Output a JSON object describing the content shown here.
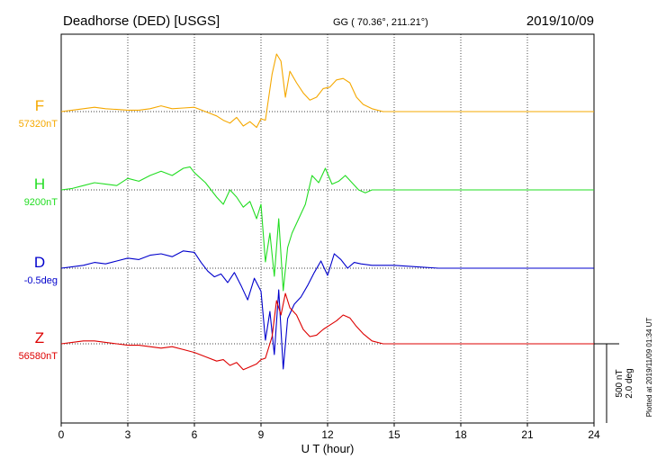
{
  "header": {
    "station": "Deadhorse (DED)  [USGS]",
    "coords": "GG ( 70.36°, 211.21°)",
    "date": "2019/10/09"
  },
  "plotted_at": "Plotted at 2019/11/09 01:34  UT",
  "scale": {
    "nt": "500 nT",
    "deg": "2.0 deg"
  },
  "chart_data": {
    "type": "line",
    "title": "",
    "xlabel": "U T (hour)",
    "ylabel": "",
    "xlim": [
      0,
      24
    ],
    "xticks": [
      "0",
      "3",
      "6",
      "9",
      "12",
      "15",
      "18",
      "21",
      "24"
    ],
    "grid": true,
    "series": [
      {
        "name": "F",
        "baseline_label": "57320nT",
        "color": "#f5a800",
        "x": [
          0,
          0.5,
          1,
          1.5,
          2,
          2.5,
          3,
          3.5,
          4,
          4.5,
          5,
          5.5,
          6,
          6.5,
          7,
          7.3,
          7.6,
          7.9,
          8.2,
          8.5,
          8.8,
          9.0,
          9.2,
          9.5,
          9.7,
          9.9,
          10.1,
          10.3,
          10.6,
          10.9,
          11.2,
          11.5,
          11.8,
          12.1,
          12.4,
          12.7,
          13.0,
          13.3,
          13.6,
          14,
          14.5,
          15,
          16,
          17,
          18,
          19,
          20,
          21,
          22,
          23,
          24
        ],
        "y": [
          0,
          10,
          20,
          30,
          20,
          15,
          10,
          10,
          20,
          40,
          20,
          25,
          30,
          0,
          -30,
          -60,
          -80,
          -40,
          -100,
          -70,
          -110,
          -50,
          -60,
          260,
          400,
          350,
          100,
          280,
          200,
          130,
          80,
          100,
          160,
          170,
          220,
          230,
          200,
          100,
          50,
          20,
          0,
          0,
          0,
          0,
          0,
          0,
          0,
          0,
          0,
          0,
          0
        ]
      },
      {
        "name": "H",
        "baseline_label": "9200nT",
        "color": "#22dd22",
        "x": [
          0,
          0.5,
          1,
          1.5,
          2,
          2.5,
          3,
          3.5,
          4,
          4.5,
          5,
          5.5,
          5.8,
          6,
          6.5,
          7,
          7.3,
          7.6,
          7.9,
          8.2,
          8.5,
          8.8,
          9.0,
          9.2,
          9.4,
          9.6,
          9.8,
          10.0,
          10.2,
          10.4,
          10.7,
          11.0,
          11.3,
          11.6,
          11.9,
          12.2,
          12.5,
          12.8,
          13.1,
          13.4,
          13.7,
          14,
          15,
          16,
          17,
          18,
          19,
          20,
          21,
          22,
          23,
          24
        ],
        "y": [
          0,
          10,
          30,
          50,
          40,
          30,
          80,
          60,
          100,
          130,
          100,
          150,
          160,
          120,
          50,
          -50,
          -100,
          0,
          -50,
          -120,
          -80,
          -200,
          -100,
          -500,
          -300,
          -600,
          -200,
          -700,
          -400,
          -300,
          -200,
          -100,
          100,
          50,
          150,
          40,
          60,
          100,
          50,
          0,
          -20,
          0,
          0,
          0,
          0,
          0,
          0,
          0,
          0,
          0,
          0,
          0
        ]
      },
      {
        "name": "D",
        "baseline_label": "-0.5deg",
        "color": "#0000cc",
        "x": [
          0,
          0.5,
          1,
          1.5,
          2,
          2.5,
          3,
          3.5,
          4,
          4.5,
          5,
          5.5,
          6,
          6.3,
          6.6,
          6.9,
          7.2,
          7.5,
          7.8,
          8.1,
          8.4,
          8.7,
          9.0,
          9.2,
          9.4,
          9.6,
          9.8,
          10.0,
          10.2,
          10.5,
          10.8,
          11.1,
          11.4,
          11.7,
          12.0,
          12.3,
          12.6,
          12.9,
          13.2,
          13.5,
          14,
          15,
          16,
          17,
          18,
          19,
          20,
          21,
          22,
          23,
          24
        ],
        "y": [
          0,
          10,
          20,
          40,
          30,
          50,
          70,
          60,
          90,
          100,
          80,
          120,
          110,
          40,
          -20,
          -60,
          -40,
          -100,
          -30,
          -120,
          -220,
          -70,
          -160,
          -500,
          -300,
          -600,
          -150,
          -700,
          -350,
          -250,
          -200,
          -120,
          -30,
          50,
          -50,
          100,
          60,
          0,
          40,
          30,
          20,
          20,
          10,
          0,
          0,
          0,
          0,
          0,
          0,
          0,
          0
        ]
      },
      {
        "name": "Z",
        "baseline_label": "56580nT",
        "color": "#dd0000",
        "x": [
          0,
          0.5,
          1,
          1.5,
          2,
          2.5,
          3,
          3.5,
          4,
          4.5,
          5,
          5.5,
          6,
          6.5,
          7,
          7.3,
          7.6,
          7.9,
          8.2,
          8.5,
          8.8,
          9.0,
          9.2,
          9.5,
          9.7,
          9.9,
          10.1,
          10.3,
          10.6,
          10.9,
          11.2,
          11.5,
          11.8,
          12.1,
          12.4,
          12.7,
          13.0,
          13.3,
          13.6,
          14,
          14.5,
          15,
          16,
          17,
          18,
          19,
          20,
          21,
          22,
          23,
          24
        ],
        "y": [
          0,
          10,
          20,
          20,
          10,
          0,
          -10,
          -10,
          -20,
          -30,
          -20,
          -40,
          -60,
          -90,
          -120,
          -110,
          -150,
          -130,
          -180,
          -160,
          -140,
          -110,
          -100,
          50,
          300,
          200,
          350,
          250,
          200,
          100,
          50,
          60,
          100,
          130,
          160,
          200,
          180,
          120,
          70,
          20,
          0,
          0,
          0,
          0,
          0,
          0,
          0,
          0,
          0,
          0,
          0
        ]
      }
    ]
  }
}
